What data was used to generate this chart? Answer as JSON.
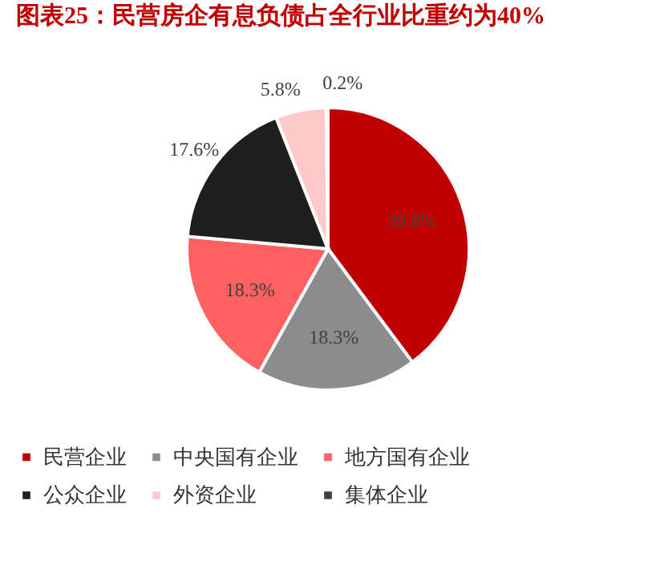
{
  "chart_data": {
    "type": "pie",
    "title": "图表25：民营房企有息负债占全行业比重约为40%",
    "categories": [
      "民营企业",
      "中央国有企业",
      "地方国有企业",
      "公众企业",
      "外资企业",
      "集体企业"
    ],
    "values": [
      39.8,
      18.3,
      18.3,
      17.6,
      5.8,
      0.2
    ],
    "colors": [
      "#c00000",
      "#8c8c8c",
      "#ff6161",
      "#1f1f1f",
      "#ffc9c9",
      "#404040"
    ],
    "value_labels": [
      "39.8%",
      "18.3%",
      "18.3%",
      "17.6%",
      "5.8%",
      "0.2%"
    ],
    "legend": "bottom"
  }
}
